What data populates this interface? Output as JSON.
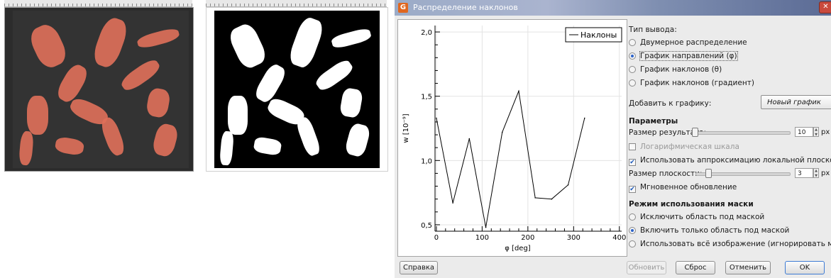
{
  "dialog": {
    "title": "Распределение наклонов",
    "close_symbol": "✕",
    "logo_symbol": "G",
    "output_type": {
      "heading": "Тип вывода:",
      "options": [
        {
          "label": "Двумерное распределение",
          "selected": false
        },
        {
          "label": "График направлений (φ)",
          "selected": true
        },
        {
          "label": "График наклонов (θ)",
          "selected": false
        },
        {
          "label": "График наклонов (градиент)",
          "selected": false
        }
      ]
    },
    "add_to_graph": {
      "label": "Добавить к графику:",
      "value": "Новый график"
    },
    "parameters": {
      "heading": "Параметры",
      "result_size_label": "Размер результата:",
      "result_size_value": "10",
      "result_size_unit": "px",
      "log_scale_label": "Логарифмическая шкала",
      "log_scale_checked": false,
      "local_plane_label": "Использовать аппроксимацию локальной плоскостью",
      "local_plane_checked": true,
      "plane_size_label": "Размер плоскости:",
      "plane_size_value": "3",
      "plane_size_unit": "px",
      "instant_update_label": "Мгновенное обновление",
      "instant_update_checked": true
    },
    "mask_mode": {
      "heading": "Режим использования маски",
      "options": [
        {
          "label": "Исключить область под маской",
          "selected": false
        },
        {
          "label": "Включить только область под маской",
          "selected": true
        },
        {
          "label": "Использовать всё изображение (игнорировать маску)",
          "selected": false
        }
      ]
    },
    "buttons": {
      "help": "Справка",
      "update": "Обновить",
      "reset": "Сброс",
      "cancel": "Отменить",
      "ok": "OK"
    }
  },
  "chart_data": {
    "type": "line",
    "title": "",
    "xlabel": "φ [deg]",
    "ylabel": "w [10⁻⁹]",
    "xlim": [
      -3,
      405
    ],
    "ylim": [
      0.45,
      2.05
    ],
    "xticks": [
      0,
      100,
      200,
      300,
      400
    ],
    "xtick_labels": [
      "0",
      "100",
      "200",
      "300",
      "400"
    ],
    "yticks": [
      0.5,
      1.0,
      1.5,
      2.0
    ],
    "ytick_labels": [
      "0,5",
      "1,0",
      "1,5",
      "2,0"
    ],
    "grid": true,
    "legend_position": "top-right",
    "series": [
      {
        "name": "Наклоны",
        "x": [
          0,
          36,
          72,
          108,
          144,
          180,
          216,
          252,
          288,
          324
        ],
        "y": [
          1.33,
          0.67,
          1.17,
          0.48,
          1.22,
          1.54,
          0.71,
          0.7,
          0.81,
          1.33
        ]
      }
    ]
  }
}
